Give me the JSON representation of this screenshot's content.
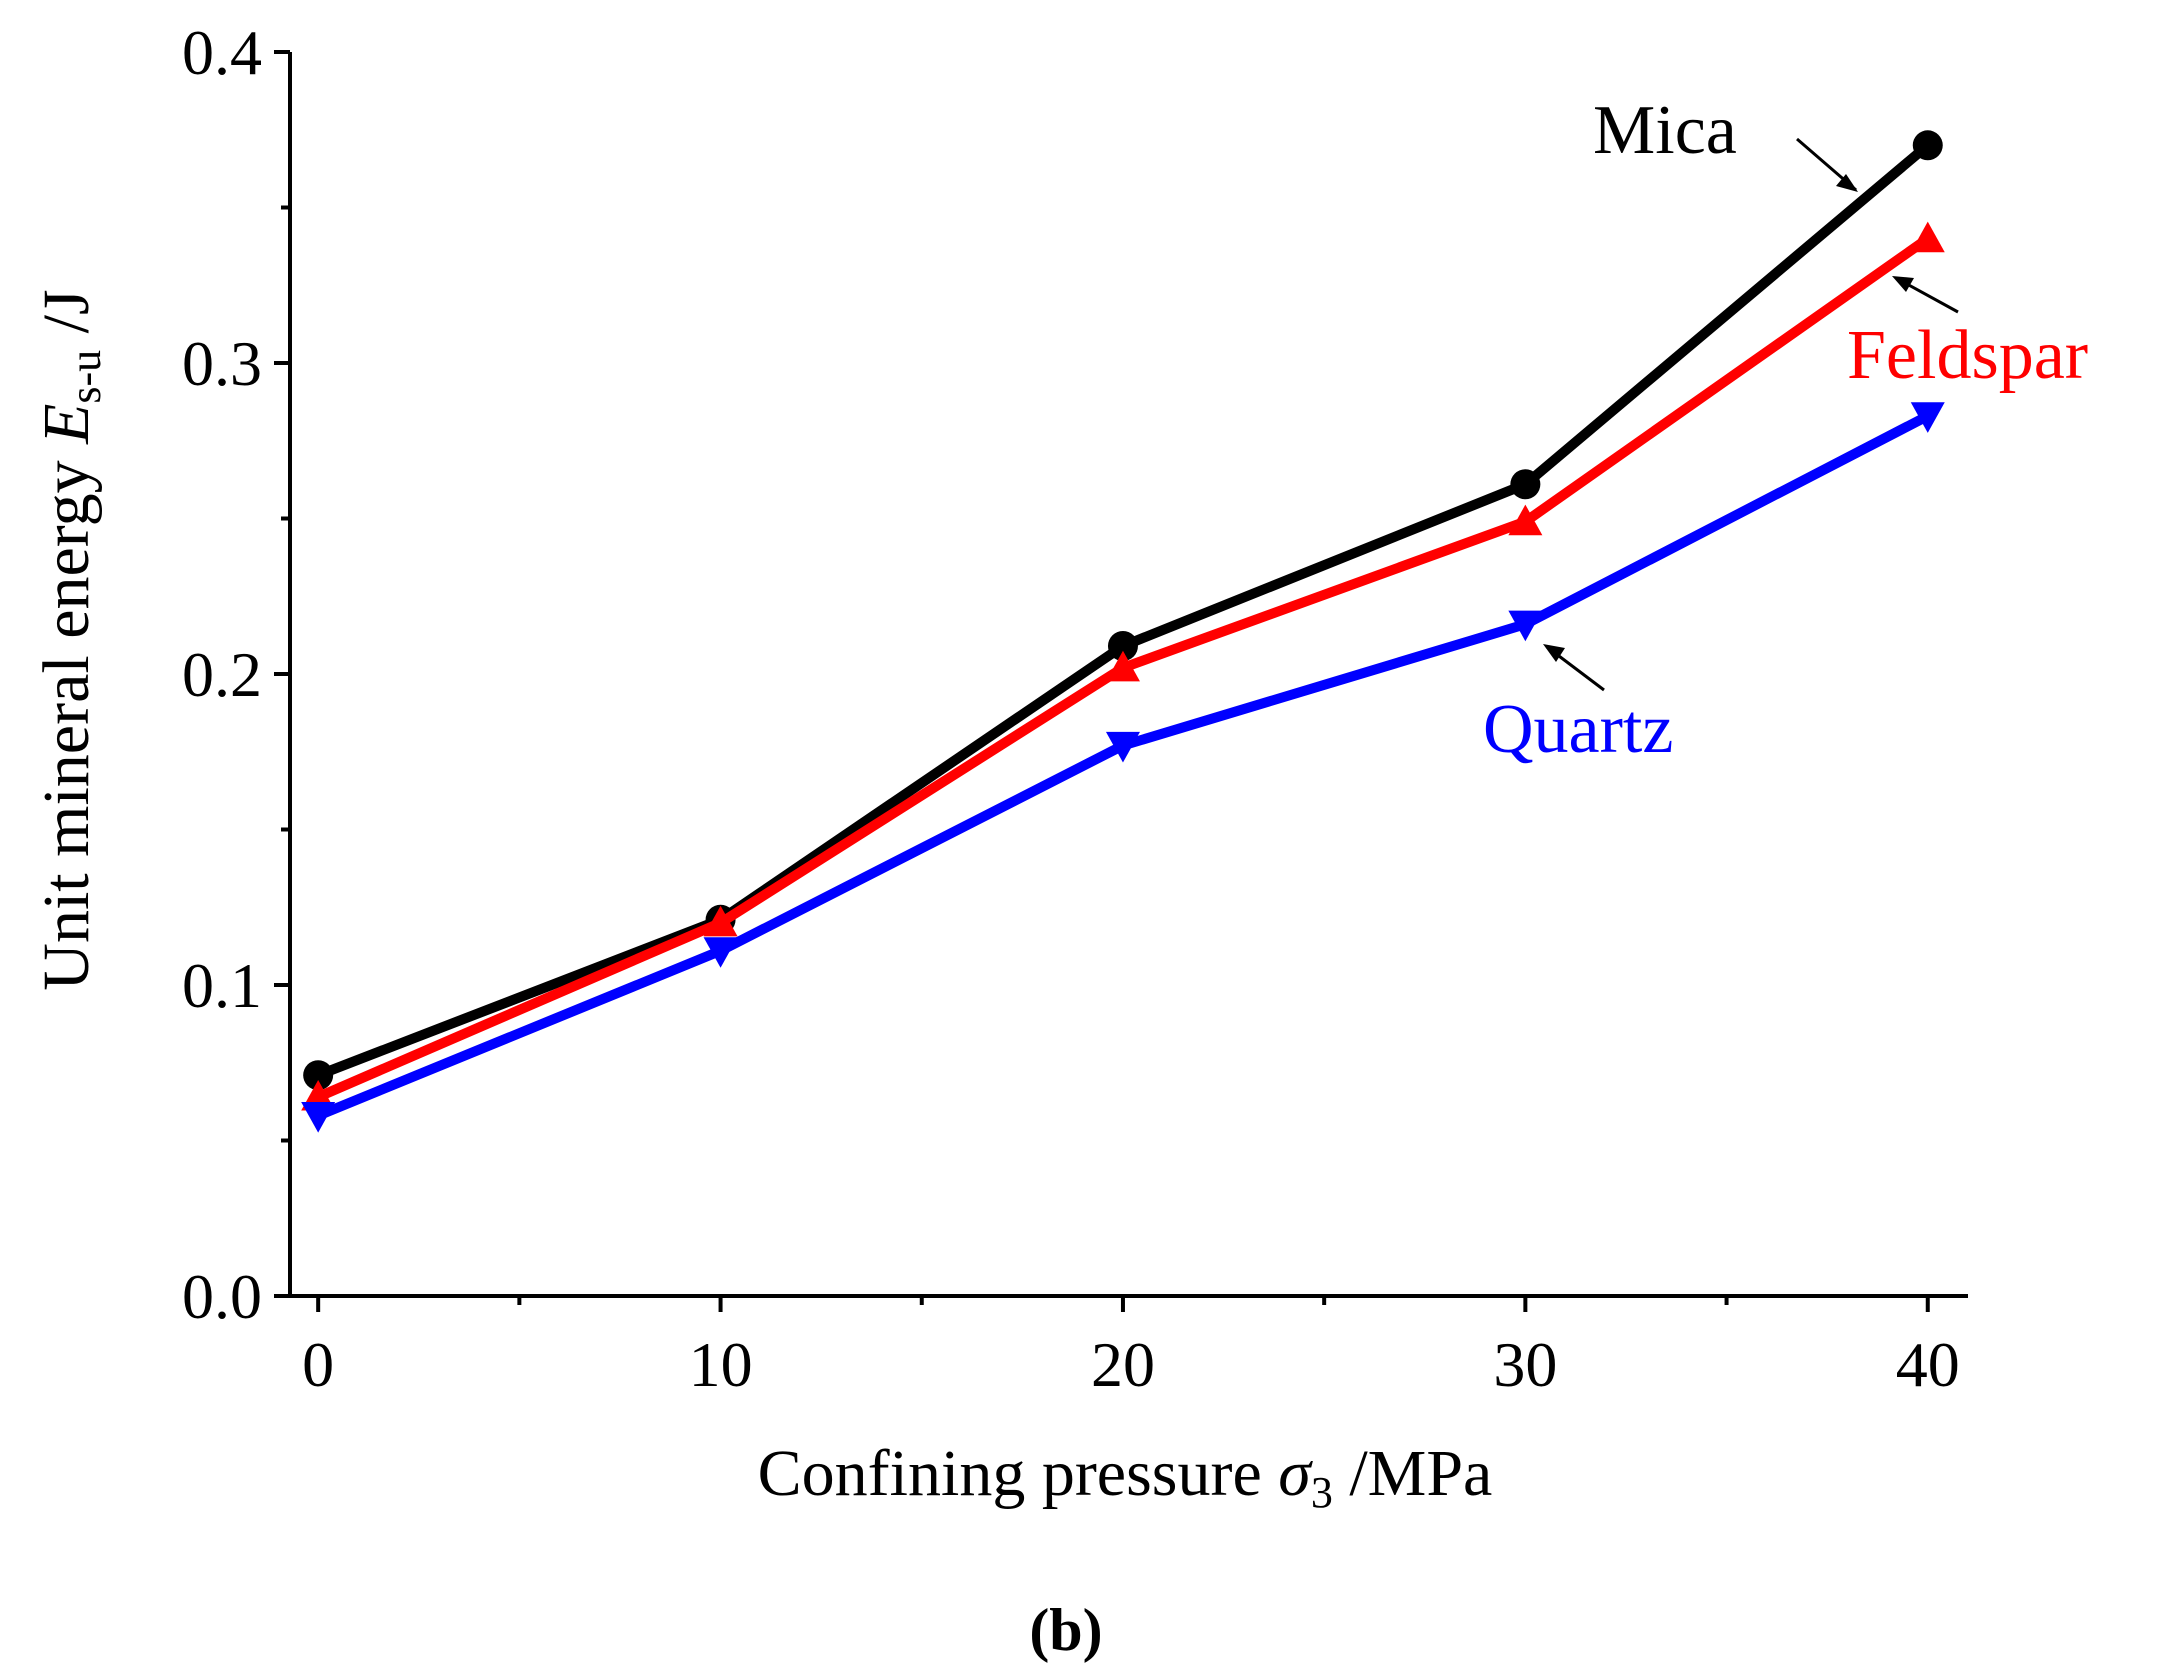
{
  "chart_data": {
    "type": "line",
    "x": [
      0,
      10,
      20,
      30,
      40
    ],
    "series": [
      {
        "name": "Mica",
        "color": "#000000",
        "marker": "circle",
        "values": [
          0.071,
          0.121,
          0.209,
          0.261,
          0.37
        ]
      },
      {
        "name": "Feldspar",
        "color": "#ff0000",
        "marker": "triangle-up",
        "values": [
          0.064,
          0.12,
          0.202,
          0.249,
          0.34
        ]
      },
      {
        "name": "Quartz",
        "color": "#0000ff",
        "marker": "triangle-down",
        "values": [
          0.058,
          0.111,
          0.177,
          0.216,
          0.283
        ]
      }
    ],
    "xlabel": {
      "text": "Confining pressure ",
      "symbol": "σ",
      "subscript": "3",
      "unit": " /MPa"
    },
    "ylabel": {
      "text": "Unit mineral energy ",
      "symbol": "E",
      "subscript": "s-u",
      "unit": " /J"
    },
    "xlim": [
      -0.7,
      41
    ],
    "ylim": [
      0,
      0.4
    ],
    "x_ticks": [
      "0",
      "10",
      "20",
      "30",
      "40"
    ],
    "y_ticks": [
      "0.0",
      "0.1",
      "0.2",
      "0.3",
      "0.4"
    ],
    "x_tick_values": [
      0,
      10,
      20,
      30,
      40
    ],
    "y_tick_values": [
      0,
      0.1,
      0.2,
      0.3,
      0.4
    ],
    "x_minor_values": [
      5,
      15,
      25,
      35
    ],
    "y_minor_values": [
      0.05,
      0.15,
      0.25,
      0.35
    ],
    "annotations": {
      "mica_label": "Mica",
      "feldspar_label": "Feldspar",
      "quartz_label": "Quartz"
    },
    "caption": "(b)"
  }
}
